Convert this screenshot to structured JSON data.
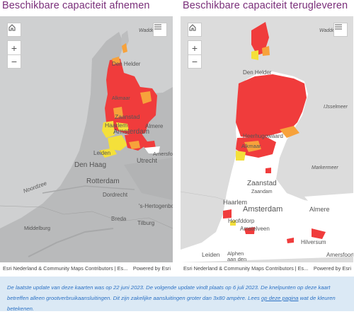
{
  "maps": [
    {
      "title": "Beschikbare capaciteit afnemen",
      "labels": {
        "sea": "Noordzee",
        "wadden": "Wadde",
        "den_helder": "Den Helder",
        "alkmaar": "Alkmaar",
        "zaanstad": "Zaanstad",
        "haarlem": "Haarlem",
        "amsterdam": "Amsterdam",
        "almere": "Almere",
        "amersfoort": "Amersfo",
        "leiden": "Leiden",
        "den_haag": "Den Haag",
        "utrecht": "Utrecht",
        "rotterdam": "Rotterdam",
        "dordrecht": "Dordrecht",
        "hertogenbosch": "'s-Hertogenbo",
        "breda": "Breda",
        "tilburg": "Tilburg",
        "middelburg": "Middelburg"
      }
    },
    {
      "title": "Beschikbare capaciteit terugleveren",
      "labels": {
        "wadden": "Wadde",
        "den_helder": "Den Helder",
        "ijsselmeer": "IJsselmeer",
        "heerhugowaard": "Heerhugowaard",
        "alkmaar": "Alkmaar",
        "markermeer": "Markermeer",
        "zaanstad": "Zaanstad",
        "zaandam": "Zaandam",
        "haarlem": "Haarlem",
        "amsterdam": "Amsterdam",
        "almere": "Almere",
        "hoofddorp": "Hoofddorp",
        "amstelveen": "Amstelveen",
        "hilversum": "Hilversum",
        "leiden": "Leiden",
        "alphen": "Alphen",
        "alphen2": "aan den",
        "amersfoort": "Amersfoort"
      }
    }
  ],
  "controls": {
    "home_icon": "home-icon",
    "zoom_in": "+",
    "zoom_out": "−",
    "list_icon": "list-icon"
  },
  "attribution": {
    "source": "Esri Nederland & Community Maps Contributors | Es...",
    "powered": "Powered by Esri"
  },
  "notice": {
    "text": "De laatste update van deze kaarten was op 22 juni 2023. De volgende update vindt plaats op 6 juli 2023. De knelpunten op deze kaart betreffen alleen grootverbruikaansluitingen. Dit zijn zakelijke aansluitingen groter dan 3x80 ampère. Lees ",
    "link": "op deze pagina",
    "after": " wat de kleuren betekenen."
  },
  "colors": {
    "red": "#f03c3c",
    "orange": "#f7a23b",
    "yellow": "#f4e03a",
    "land_left": "#b7b8b9",
    "title": "#7a2f7a",
    "notice_text": "#2d72c4",
    "notice_bg": "#dbe9f5"
  }
}
